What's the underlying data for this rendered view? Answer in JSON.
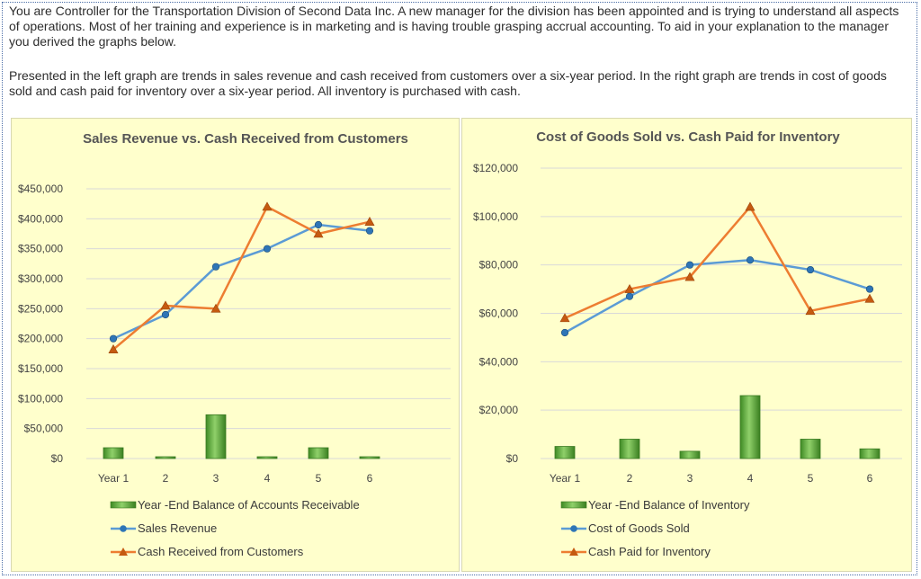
{
  "paragraphs": {
    "intro": "You are Controller for the Transportation Division of Second Data Inc. A new manager for the division has been appointed and is trying to understand all aspects of operations. Most of her training and experience is in marketing and is having trouble grasping accrual accounting. To aid in your explanation to the manager you derived the graphs below.",
    "description": "Presented in the left graph are trends in sales revenue and cash received from customers over a six-year period. In the right graph are trends in cost of goods sold and cash paid for inventory over a six-year period. All inventory is purchased with cash."
  },
  "colors": {
    "panel_bg": "#ffffcc",
    "bar": "#5aa83a",
    "line_blue": "#5b9bd5",
    "line_orange": "#ed7d31"
  },
  "chart_data": [
    {
      "type": "line",
      "title": "Sales Revenue vs. Cash Received from Customers",
      "categories": [
        "Year 1",
        "2",
        "3",
        "4",
        "5",
        "6"
      ],
      "ylim": [
        0,
        450000
      ],
      "yticks": [
        0,
        50000,
        100000,
        150000,
        200000,
        250000,
        300000,
        350000,
        400000,
        450000
      ],
      "ytick_labels": [
        "$0",
        "$50,000",
        "$100,000",
        "$150,000",
        "$200,000",
        "$250,000",
        "$300,000",
        "$350,000",
        "$400,000",
        "$450,000"
      ],
      "grid": true,
      "legend_position": "bottom",
      "series": [
        {
          "name": "Year -End Balance of Accounts Receivable",
          "kind": "bar",
          "values": [
            18000,
            2000,
            73000,
            2000,
            18000,
            2000
          ]
        },
        {
          "name": "Sales Revenue",
          "kind": "line",
          "marker": "circle",
          "values": [
            200000,
            240000,
            320000,
            350000,
            390000,
            380000
          ]
        },
        {
          "name": "Cash Received from Customers",
          "kind": "line",
          "marker": "triangle",
          "values": [
            182000,
            255000,
            250000,
            420000,
            375000,
            395000
          ]
        }
      ]
    },
    {
      "type": "line",
      "title": "Cost of Goods Sold vs. Cash Paid for Inventory",
      "categories": [
        "Year 1",
        "2",
        "3",
        "4",
        "5",
        "6"
      ],
      "ylim": [
        0,
        120000
      ],
      "yticks": [
        0,
        20000,
        40000,
        60000,
        80000,
        100000,
        120000
      ],
      "ytick_labels": [
        "$0",
        "$20,000",
        "$40,000",
        "$60,000",
        "$80,000",
        "$100,000",
        "$120,000"
      ],
      "grid": true,
      "legend_position": "bottom",
      "series": [
        {
          "name": "Year -End Balance of Inventory",
          "kind": "bar",
          "values": [
            5000,
            8000,
            3000,
            26000,
            8000,
            4000
          ]
        },
        {
          "name": "Cost of Goods Sold",
          "kind": "line",
          "marker": "circle",
          "values": [
            52000,
            67000,
            80000,
            82000,
            78000,
            70000
          ]
        },
        {
          "name": "Cash Paid for Inventory",
          "kind": "line",
          "marker": "triangle",
          "values": [
            58000,
            70000,
            75000,
            104000,
            61000,
            66000
          ]
        }
      ]
    }
  ]
}
